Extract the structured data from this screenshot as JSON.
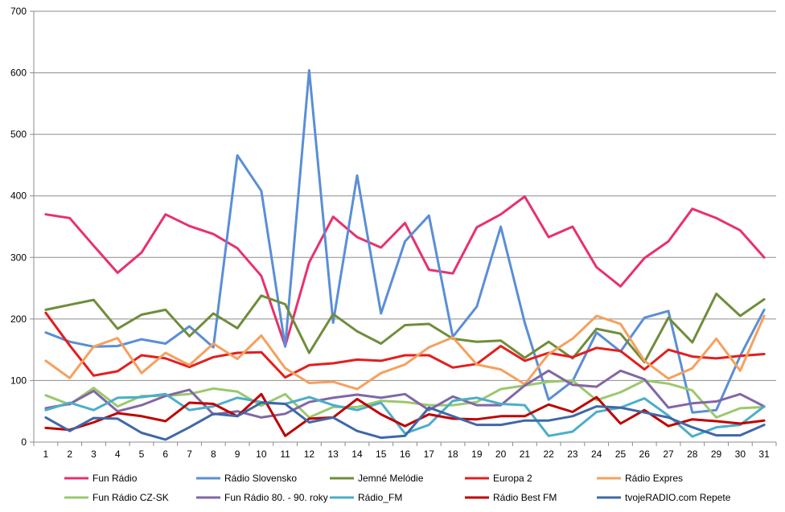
{
  "chart_data": {
    "type": "line",
    "title": "",
    "xlabel": "",
    "ylabel": "",
    "ylim": [
      0,
      700
    ],
    "yticks": [
      0,
      100,
      200,
      300,
      400,
      500,
      600,
      700
    ],
    "grid": "horizontal",
    "legend_position": "bottom",
    "categories": [
      "1",
      "2",
      "3",
      "4",
      "5",
      "6",
      "7",
      "8",
      "9",
      "10",
      "11",
      "12",
      "13",
      "14",
      "15",
      "16",
      "17",
      "18",
      "19",
      "20",
      "21",
      "22",
      "23",
      "24",
      "25",
      "26",
      "27",
      "28",
      "29",
      "30",
      "31"
    ],
    "series": [
      {
        "name": "Fun Rádio",
        "color": "#E8316C",
        "values": [
          370,
          364,
          319,
          275,
          308,
          370,
          351,
          338,
          315,
          270,
          156,
          292,
          366,
          333,
          316,
          356,
          280,
          274,
          349,
          370,
          399,
          333,
          350,
          284,
          253,
          299,
          326,
          379,
          364,
          344,
          300
        ]
      },
      {
        "name": "Rádio Slovensko",
        "color": "#5A8ED6",
        "values": [
          178,
          163,
          155,
          156,
          167,
          160,
          188,
          154,
          466,
          408,
          155,
          604,
          194,
          433,
          209,
          326,
          368,
          171,
          220,
          350,
          194,
          69,
          99,
          178,
          147,
          202,
          213,
          48,
          52,
          140,
          215
        ]
      },
      {
        "name": "Jemné Melódie",
        "color": "#6F8D3A",
        "values": [
          215,
          223,
          231,
          184,
          207,
          215,
          172,
          209,
          185,
          238,
          224,
          145,
          208,
          180,
          160,
          190,
          192,
          168,
          163,
          165,
          137,
          163,
          136,
          184,
          176,
          130,
          202,
          162,
          241,
          205,
          232
        ]
      },
      {
        "name": "Europa 2",
        "color": "#E31E1E",
        "values": [
          210,
          157,
          108,
          115,
          141,
          136,
          122,
          138,
          145,
          146,
          105,
          125,
          128,
          134,
          132,
          141,
          141,
          121,
          127,
          156,
          132,
          145,
          138,
          153,
          148,
          118,
          150,
          139,
          136,
          140,
          143
        ]
      },
      {
        "name": "Rádio Expres",
        "color": "#F5A05E",
        "values": [
          132,
          104,
          155,
          169,
          112,
          145,
          125,
          160,
          135,
          173,
          120,
          96,
          98,
          86,
          112,
          126,
          154,
          170,
          126,
          118,
          94,
          143,
          168,
          205,
          192,
          132,
          103,
          120,
          168,
          116,
          205
        ]
      },
      {
        "name": "Fun Rádio CZ-SK",
        "color": "#9BC86D",
        "values": [
          76,
          61,
          88,
          58,
          75,
          75,
          78,
          87,
          82,
          59,
          78,
          40,
          57,
          57,
          67,
          65,
          60,
          60,
          65,
          86,
          92,
          98,
          100,
          68,
          81,
          100,
          95,
          84,
          40,
          55,
          57
        ]
      },
      {
        "name": "Fun Rádio 80. - 90. roky",
        "color": "#8266A6",
        "values": [
          55,
          62,
          83,
          50,
          60,
          75,
          85,
          45,
          50,
          40,
          46,
          65,
          72,
          77,
          72,
          78,
          52,
          74,
          60,
          60,
          92,
          116,
          93,
          90,
          116,
          102,
          56,
          63,
          66,
          78,
          58
        ]
      },
      {
        "name": "Rádio_FM",
        "color": "#4BAEC9",
        "values": [
          52,
          64,
          52,
          72,
          73,
          78,
          52,
          58,
          72,
          65,
          62,
          73,
          60,
          52,
          64,
          14,
          28,
          67,
          72,
          62,
          60,
          10,
          17,
          49,
          56,
          71,
          43,
          9,
          24,
          28,
          58
        ]
      },
      {
        "name": "Rádio Best FM",
        "color": "#C00000",
        "values": [
          23,
          20,
          32,
          47,
          42,
          34,
          64,
          62,
          42,
          78,
          10,
          38,
          40,
          70,
          45,
          26,
          45,
          38,
          37,
          42,
          42,
          61,
          49,
          73,
          30,
          52,
          26,
          37,
          34,
          30,
          35
        ]
      },
      {
        "name": "tvojeRADIO.com Repete",
        "color": "#3F68A6",
        "values": [
          40,
          18,
          39,
          38,
          15,
          4,
          24,
          46,
          42,
          64,
          62,
          32,
          40,
          18,
          7,
          10,
          56,
          42,
          28,
          28,
          35,
          35,
          42,
          58,
          56,
          48,
          40,
          24,
          11,
          11,
          28
        ]
      }
    ]
  }
}
